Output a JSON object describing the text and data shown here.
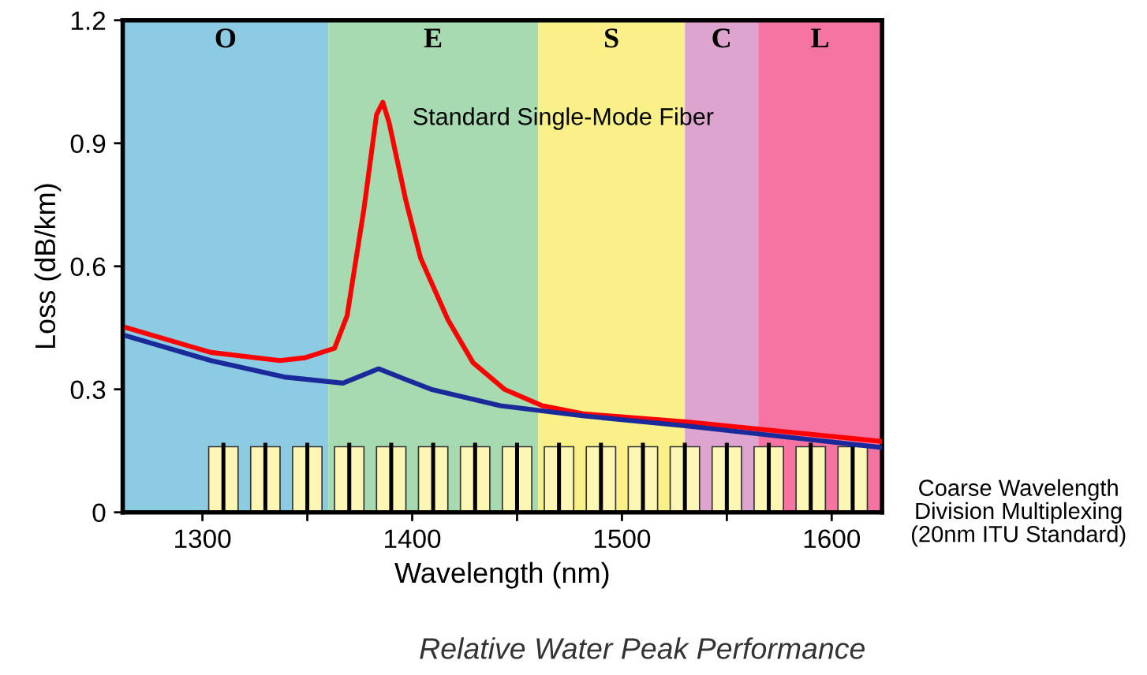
{
  "chart_data": {
    "type": "line",
    "xlabel": "Wavelength (nm)",
    "ylabel": "Loss (dB/km)",
    "xlim": [
      1262,
      1624
    ],
    "ylim": [
      0,
      1.2
    ],
    "xticks": [
      1300,
      {
        "value": 1350,
        "label": null
      },
      1400,
      {
        "value": 1450,
        "label": null
      },
      1500,
      {
        "value": 1550,
        "label": null
      },
      1600
    ],
    "yticks": [
      0,
      0.3,
      0.6,
      0.9,
      1.2
    ],
    "grid": false,
    "bands": [
      {
        "axis": "x",
        "from": 1262,
        "to": 1360,
        "label": "O",
        "color": "#8ccbe2"
      },
      {
        "axis": "x",
        "from": 1360,
        "to": 1460,
        "label": "E",
        "color": "#a6dab0"
      },
      {
        "axis": "x",
        "from": 1460,
        "to": 1530,
        "label": "S",
        "color": "#faf08a"
      },
      {
        "axis": "x",
        "from": 1530,
        "to": 1565,
        "label": "C",
        "color": "#dca4cf"
      },
      {
        "axis": "x",
        "from": 1565,
        "to": 1624,
        "label": "L",
        "color": "#f574a2"
      }
    ],
    "series": [
      {
        "type": "bar",
        "color": "#fdf6b4",
        "x": [
          1310,
          1330,
          1350,
          1370,
          1390,
          1410,
          1430,
          1450,
          1470,
          1490,
          1510,
          1530,
          1550,
          1570,
          1590,
          1610
        ],
        "values": [
          0.16,
          0.16,
          0.16,
          0.16,
          0.16,
          0.16,
          0.16,
          0.16,
          0.16,
          0.16,
          0.16,
          0.16,
          0.16,
          0.16,
          0.16,
          0.16
        ]
      },
      {
        "type": "line",
        "name": "Standard Single-Mode Fiber",
        "color": "#ff0000",
        "x": [
          1264,
          1304,
          1337,
          1349,
          1363,
          1369,
          1377,
          1383,
          1386,
          1389,
          1397,
          1404,
          1417,
          1429,
          1444,
          1462,
          1482,
          1532,
          1624
        ],
        "values": [
          0.45,
          0.39,
          0.37,
          0.377,
          0.4,
          0.48,
          0.74,
          0.97,
          1.0,
          0.95,
          0.76,
          0.62,
          0.47,
          0.365,
          0.3,
          0.26,
          0.24,
          0.22,
          0.173
        ]
      },
      {
        "color": "#1a2a9a",
        "x": [
          1264,
          1304,
          1339,
          1367,
          1384,
          1394,
          1409,
          1442,
          1482,
          1532,
          1624
        ],
        "values": [
          0.43,
          0.37,
          0.33,
          0.315,
          0.35,
          0.33,
          0.3,
          0.26,
          0.235,
          0.21,
          0.158
        ]
      }
    ],
    "annotations": [
      "Coarse Wavelength\nDivision Multiplexing\n(20nm ITU Standard)",
      "Relative Water Peak Performance"
    ]
  }
}
